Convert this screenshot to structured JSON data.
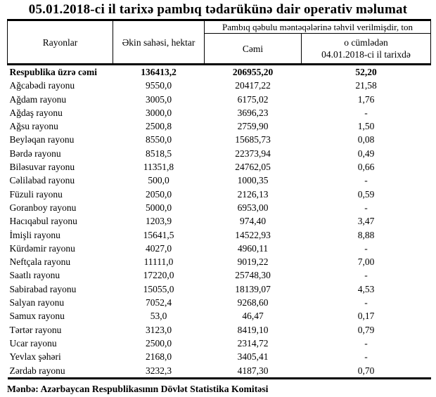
{
  "title": "05.01.2018-ci il tarixə pambıq tədarükünə dair operativ məlumat",
  "table": {
    "col_rayonlar": "Rayonlar",
    "col_ekin_sahesi": "Əkin sahəsi, hektar",
    "col_tehvil": "Pambıq qəbulu məntəqələrinə təhvil verilmişdir, ton",
    "col_cemi": "Cəmi",
    "col_o_cumleden_line1": "o cümlədən",
    "col_o_cumleden_line2": "04.01.2018-ci il tarixdə",
    "rows": [
      {
        "region": "Respublika üzrə cəmi",
        "area": "136413,2",
        "total": "206955,20",
        "on_date": "52,20",
        "bold": true
      },
      {
        "region": "Ağcabədi rayonu",
        "area": "9550,0",
        "total": "20417,22",
        "on_date": "21,58",
        "bold": false
      },
      {
        "region": "Ağdam rayonu",
        "area": "3005,0",
        "total": "6175,02",
        "on_date": "1,76",
        "bold": false
      },
      {
        "region": "Ağdaş rayonu",
        "area": "3000,0",
        "total": "3696,23",
        "on_date": "-",
        "bold": false
      },
      {
        "region": "Ağsu rayonu",
        "area": "2500,8",
        "total": "2759,90",
        "on_date": "1,50",
        "bold": false
      },
      {
        "region": "Beyləqan rayonu",
        "area": "8550,0",
        "total": "15685,73",
        "on_date": "0,08",
        "bold": false
      },
      {
        "region": "Bərdə rayonu",
        "area": "8518,5",
        "total": "22373,94",
        "on_date": "0,49",
        "bold": false
      },
      {
        "region": "Biləsuvar rayonu",
        "area": "11351,8",
        "total": "24762,05",
        "on_date": "0,66",
        "bold": false
      },
      {
        "region": "Cəlilabad rayonu",
        "area": "500,0",
        "total": "1000,35",
        "on_date": "-",
        "bold": false
      },
      {
        "region": "Füzuli rayonu",
        "area": "2050,0",
        "total": "2126,13",
        "on_date": "0,59",
        "bold": false
      },
      {
        "region": "Goranboy rayonu",
        "area": "5000,0",
        "total": "6953,00",
        "on_date": "-",
        "bold": false
      },
      {
        "region": "Hacıqabul rayonu",
        "area": "1203,9",
        "total": "974,40",
        "on_date": "3,47",
        "bold": false
      },
      {
        "region": "İmişli rayonu",
        "area": "15641,5",
        "total": "14522,93",
        "on_date": "8,88",
        "bold": false
      },
      {
        "region": "Kürdəmir rayonu",
        "area": "4027,0",
        "total": "4960,11",
        "on_date": "-",
        "bold": false
      },
      {
        "region": "Neftçala rayonu",
        "area": "11111,0",
        "total": "9019,22",
        "on_date": "7,00",
        "bold": false
      },
      {
        "region": "Saatlı rayonu",
        "area": "17220,0",
        "total": "25748,30",
        "on_date": "-",
        "bold": false
      },
      {
        "region": "Sabirabad rayonu",
        "area": "15055,0",
        "total": "18139,07",
        "on_date": "4,53",
        "bold": false
      },
      {
        "region": "Salyan rayonu",
        "area": "7052,4",
        "total": "9268,60",
        "on_date": "-",
        "bold": false
      },
      {
        "region": "Samux rayonu",
        "area": "53,0",
        "total": "46,47",
        "on_date": "0,17",
        "bold": false
      },
      {
        "region": "Tərtər rayonu",
        "area": "3123,0",
        "total": "8419,10",
        "on_date": "0,79",
        "bold": false
      },
      {
        "region": "Ucar rayonu",
        "area": "2500,0",
        "total": "2314,72",
        "on_date": "-",
        "bold": false
      },
      {
        "region": "Yevlax şəhəri",
        "area": "2168,0",
        "total": "3405,41",
        "on_date": "-",
        "bold": false
      },
      {
        "region": "Zərdab rayonu",
        "area": "3232,3",
        "total": "4187,30",
        "on_date": "0,70",
        "bold": false
      }
    ]
  },
  "footer": {
    "source": "Mənbə: Azərbaycan Respublikasının Dövlət Statistika Komitəsi"
  }
}
